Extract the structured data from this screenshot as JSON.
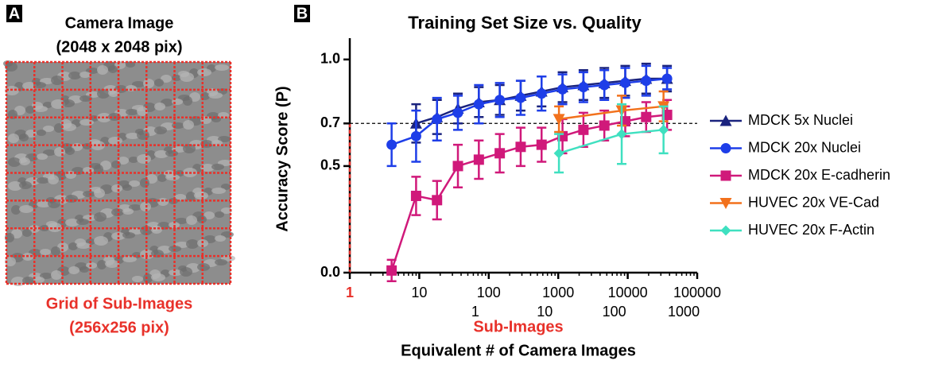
{
  "panel_a": {
    "label": "A",
    "title": "Camera Image",
    "subtitle": "(2048 x 2048 pix)",
    "caption": "Grid of Sub-Images",
    "caption_sub": "(256x256 pix)"
  },
  "chart_data": {
    "type": "line",
    "panel_label": "B",
    "title": "Training Set Size vs. Quality",
    "ylabel": "Accuracy Score (P)",
    "xlabel": "Sub-Images",
    "x2label": "Equivalent # of Camera Images",
    "xscale": "log",
    "xlim": [
      1,
      100000
    ],
    "xticks": [
      1,
      10,
      100,
      1000,
      10000,
      100000
    ],
    "x2ticks": [
      {
        "value": 64,
        "label": "1"
      },
      {
        "value": 640,
        "label": "10"
      },
      {
        "value": 6400,
        "label": "100"
      },
      {
        "value": 64000,
        "label": "1000"
      }
    ],
    "ylim": [
      0,
      1.1
    ],
    "yticks": [
      0.0,
      0.5,
      0.7,
      1.0
    ],
    "hline": 0.7,
    "series": [
      {
        "name": "MDCK 5x Nuclei",
        "color": "#1a237e",
        "marker": "triangle",
        "x": [
          9,
          18,
          36,
          72,
          144,
          288,
          576,
          1152,
          2304,
          4608,
          9216,
          18432,
          36864
        ],
        "values": [
          0.7,
          0.73,
          0.77,
          0.8,
          0.81,
          0.83,
          0.85,
          0.87,
          0.88,
          0.89,
          0.9,
          0.91,
          0.91
        ],
        "errors": [
          0.09,
          0.08,
          0.07,
          0.07,
          0.07,
          0.07,
          0.07,
          0.07,
          0.07,
          0.07,
          0.07,
          0.07,
          0.06
        ]
      },
      {
        "name": "MDCK 20x Nuclei",
        "color": "#1e3ee8",
        "marker": "circle",
        "x": [
          4,
          9,
          18,
          36,
          72,
          144,
          288,
          576,
          1152,
          2304,
          4608,
          9216,
          18432,
          36864
        ],
        "values": [
          0.6,
          0.64,
          0.72,
          0.75,
          0.79,
          0.81,
          0.82,
          0.84,
          0.86,
          0.87,
          0.88,
          0.89,
          0.9,
          0.91
        ],
        "errors": [
          0.1,
          0.12,
          0.1,
          0.08,
          0.09,
          0.08,
          0.08,
          0.08,
          0.07,
          0.07,
          0.07,
          0.07,
          0.07,
          0.05
        ]
      },
      {
        "name": "MDCK 20x E-cadherin",
        "color": "#d0197a",
        "marker": "square",
        "x": [
          4,
          9,
          18,
          36,
          72,
          144,
          288,
          576,
          1152,
          2304,
          4608,
          9216,
          18432,
          36864
        ],
        "values": [
          0.01,
          0.36,
          0.34,
          0.5,
          0.53,
          0.56,
          0.59,
          0.6,
          0.64,
          0.67,
          0.69,
          0.71,
          0.73,
          0.74
        ],
        "errors": [
          0.05,
          0.09,
          0.09,
          0.1,
          0.09,
          0.09,
          0.09,
          0.08,
          0.08,
          0.08,
          0.07,
          0.07,
          0.07,
          0.07
        ]
      },
      {
        "name": "HUVEC 20x VE-Cad",
        "color": "#f2711c",
        "marker": "triangle-down",
        "x": [
          1024,
          8192,
          32768
        ],
        "values": [
          0.72,
          0.76,
          0.78
        ],
        "errors": [
          0.06,
          0.07,
          0.07
        ]
      },
      {
        "name": "HUVEC 20x F-Actin",
        "color": "#3fe0c0",
        "marker": "diamond",
        "x": [
          1024,
          8192,
          32768
        ],
        "values": [
          0.56,
          0.65,
          0.67
        ],
        "errors": [
          0.09,
          0.14,
          0.11
        ]
      }
    ]
  }
}
